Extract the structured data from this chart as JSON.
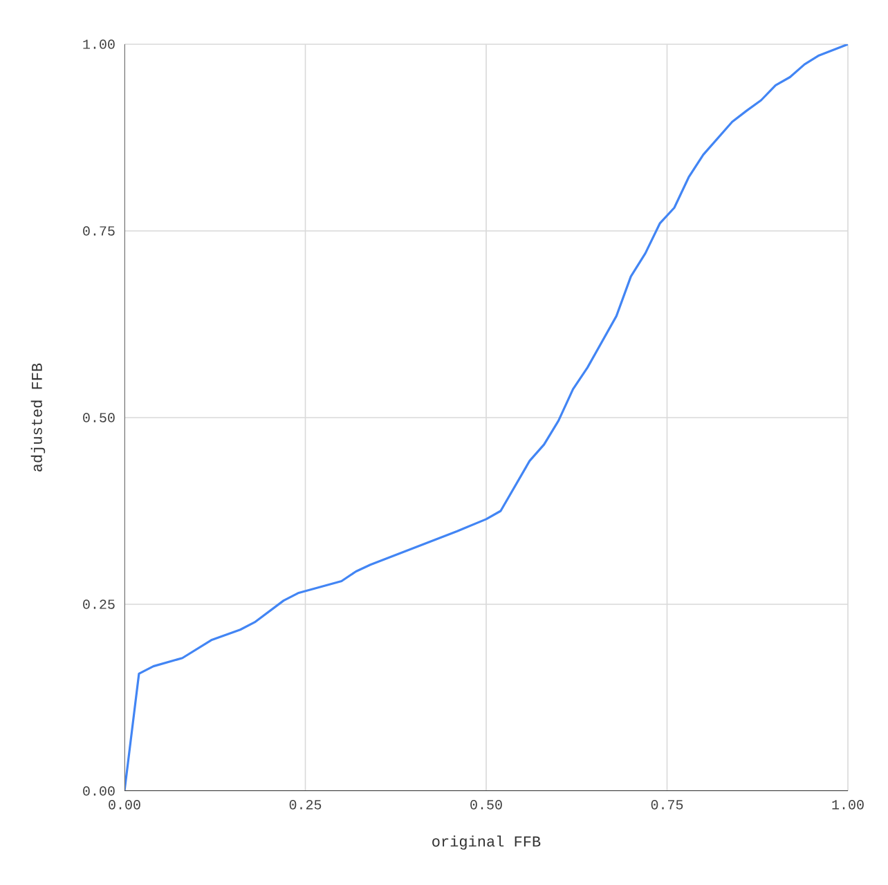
{
  "chart_data": {
    "type": "line",
    "xlabel": "original FFB",
    "ylabel": "adjusted FFB",
    "x": [
      0,
      0.02,
      0.04,
      0.08,
      0.12,
      0.16,
      0.18,
      0.22,
      0.24,
      0.3,
      0.32,
      0.34,
      0.46,
      0.5,
      0.52,
      0.56,
      0.58,
      0.6,
      0.62,
      0.64,
      0.68,
      0.7,
      0.72,
      0.74,
      0.76,
      0.78,
      0.8,
      0.84,
      0.86,
      0.88,
      0.9,
      0.92,
      0.94,
      0.96,
      1.0
    ],
    "series": [
      {
        "color": "#4285f4",
        "values": [
          0,
          0.157,
          0.167,
          0.178,
          0.202,
          0.216,
          0.226,
          0.255,
          0.265,
          0.281,
          0.294,
          0.303,
          0.348,
          0.364,
          0.375,
          0.442,
          0.464,
          0.496,
          0.538,
          0.567,
          0.636,
          0.689,
          0.72,
          0.76,
          0.781,
          0.822,
          0.852,
          0.896,
          0.911,
          0.925,
          0.945,
          0.956,
          0.973,
          0.985,
          1.0
        ]
      }
    ],
    "xlim": [
      0,
      1
    ],
    "ylim": [
      0,
      1
    ],
    "xticks": [
      {
        "value": 0,
        "label": "0.00"
      },
      {
        "value": 0.25,
        "label": "0.25"
      },
      {
        "value": 0.5,
        "label": "0.50"
      },
      {
        "value": 0.75,
        "label": "0.75"
      },
      {
        "value": 1,
        "label": "1.00"
      }
    ],
    "yticks": [
      {
        "value": 0,
        "label": "0.00"
      },
      {
        "value": 0.25,
        "label": "0.25"
      },
      {
        "value": 0.5,
        "label": "0.50"
      },
      {
        "value": 0.75,
        "label": "0.75"
      },
      {
        "value": 1,
        "label": "1.00"
      }
    ],
    "grid": true,
    "marker": "none",
    "line_style": "solid"
  }
}
